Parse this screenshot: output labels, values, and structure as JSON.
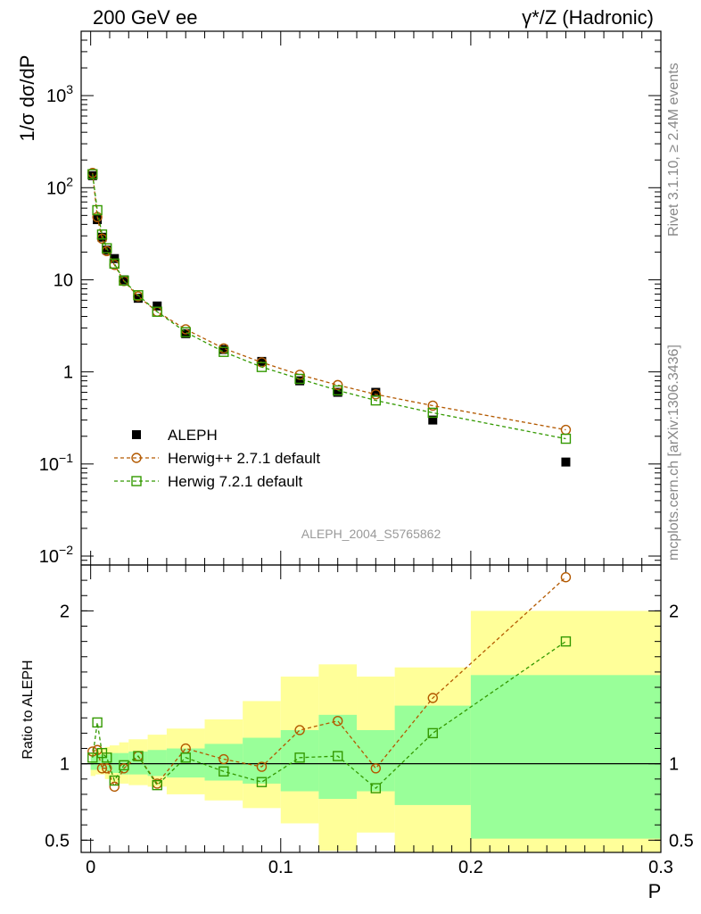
{
  "header": {
    "left_title": "200 GeV ee",
    "right_title": "γ*/Z (Hadronic)"
  },
  "side_labels": {
    "rivet": "Rivet 3.1.10, ≥ 2.4M events",
    "mcplots": "mcplots.cern.ch [arXiv:1306.3436]"
  },
  "watermark": "ALEPH_2004_S5765862",
  "colors": {
    "aleph": "#000000",
    "herwigpp": "#b35900",
    "herwig7": "#339900",
    "band_inner": "#99ff99",
    "band_outer": "#ffff99"
  },
  "chart_data": [
    {
      "type": "scatter",
      "ylabel": "1/σ  dσ/dP",
      "yscale": "log",
      "ylim": [
        0.008,
        5000
      ],
      "xlim": [
        -0.005,
        0.3
      ],
      "y_tick_labels": [
        "10^-2",
        "10^-1",
        "1",
        "10",
        "10^2",
        "10^3"
      ],
      "legend": "lower-left",
      "series": [
        {
          "name": "ALEPH",
          "marker": "filled-square",
          "x": [
            0.001,
            0.0035,
            0.006,
            0.0085,
            0.0125,
            0.0175,
            0.025,
            0.035,
            0.05,
            0.07,
            0.09,
            0.11,
            0.13,
            0.15,
            0.18,
            0.25
          ],
          "y": [
            135,
            45,
            29,
            21,
            17,
            10,
            6.3,
            5.2,
            2.6,
            1.75,
            1.3,
            0.8,
            0.6,
            0.6,
            0.3,
            0.105
          ]
        },
        {
          "name": "Herwig++ 2.7.1 default",
          "marker": "open-circle",
          "x": [
            0.001,
            0.0035,
            0.006,
            0.0085,
            0.0125,
            0.0175,
            0.025,
            0.035,
            0.05,
            0.07,
            0.09,
            0.11,
            0.13,
            0.15,
            0.18,
            0.25
          ],
          "y": [
            145,
            48,
            28,
            20.5,
            14.5,
            9.7,
            6.6,
            4.5,
            2.9,
            1.8,
            1.27,
            0.93,
            0.72,
            0.57,
            0.43,
            0.235
          ]
        },
        {
          "name": "Herwig 7.2.1 default",
          "marker": "open-square",
          "x": [
            0.001,
            0.0035,
            0.006,
            0.0085,
            0.0125,
            0.0175,
            0.025,
            0.035,
            0.05,
            0.07,
            0.09,
            0.11,
            0.13,
            0.15,
            0.18,
            0.25
          ],
          "y": [
            140,
            57,
            31,
            22,
            15,
            9.8,
            6.8,
            4.5,
            2.7,
            1.65,
            1.13,
            0.84,
            0.63,
            0.49,
            0.36,
            0.188
          ]
        }
      ]
    },
    {
      "type": "scatter",
      "ylabel": "Ratio to ALEPH",
      "xlabel": "P",
      "ylim": [
        0.42,
        2.3
      ],
      "xlim": [
        -0.005,
        0.3
      ],
      "x_ticks": [
        0,
        0.1,
        0.2,
        0.3
      ],
      "x_tick_labels": [
        "0",
        "0.1",
        "0.2",
        "0.3"
      ],
      "y_ticks": [
        0.5,
        1,
        2
      ],
      "y_tick_labels": [
        "0.5",
        "1",
        "2"
      ],
      "bin_edges": [
        0,
        0.0025,
        0.005,
        0.0075,
        0.01,
        0.015,
        0.02,
        0.03,
        0.04,
        0.06,
        0.08,
        0.1,
        0.12,
        0.14,
        0.16,
        0.2,
        0.3
      ],
      "band_inner": {
        "low": [
          0.96,
          0.96,
          0.97,
          0.95,
          0.94,
          0.93,
          0.93,
          0.92,
          0.91,
          0.89,
          0.87,
          0.82,
          0.77,
          0.82,
          0.73,
          0.51
        ],
        "high": [
          1.05,
          1.06,
          1.06,
          1.06,
          1.07,
          1.07,
          1.08,
          1.09,
          1.1,
          1.13,
          1.17,
          1.22,
          1.32,
          1.22,
          1.38,
          1.58
        ]
      },
      "band_outer": {
        "low": [
          0.92,
          0.93,
          0.93,
          0.9,
          0.88,
          0.87,
          0.86,
          0.85,
          0.8,
          0.76,
          0.71,
          0.61,
          0.43,
          0.55,
          0.33,
          0.33
        ],
        "high": [
          1.07,
          1.1,
          1.1,
          1.11,
          1.12,
          1.14,
          1.16,
          1.19,
          1.23,
          1.29,
          1.41,
          1.57,
          1.65,
          1.57,
          1.63,
          2.0
        ]
      },
      "series": [
        {
          "name": "Herwig++ 2.7.1 default",
          "marker": "open-circle",
          "x": [
            0.001,
            0.0035,
            0.006,
            0.0085,
            0.0125,
            0.0175,
            0.025,
            0.035,
            0.05,
            0.07,
            0.09,
            0.11,
            0.13,
            0.15,
            0.18,
            0.25
          ],
          "y": [
            1.08,
            1.09,
            0.97,
            0.97,
            0.85,
            0.97,
            1.05,
            0.87,
            1.1,
            1.03,
            0.98,
            1.22,
            1.28,
            0.97,
            1.43,
            2.22
          ]
        },
        {
          "name": "Herwig 7.2.1 default",
          "marker": "open-square",
          "x": [
            0.001,
            0.0035,
            0.006,
            0.0085,
            0.0125,
            0.0175,
            0.025,
            0.035,
            0.05,
            0.07,
            0.09,
            0.11,
            0.13,
            0.15,
            0.18,
            0.25
          ],
          "y": [
            1.04,
            1.27,
            1.07,
            1.04,
            0.89,
            0.99,
            1.05,
            0.86,
            1.04,
            0.95,
            0.88,
            1.04,
            1.05,
            0.84,
            1.2,
            1.8
          ]
        }
      ]
    }
  ]
}
